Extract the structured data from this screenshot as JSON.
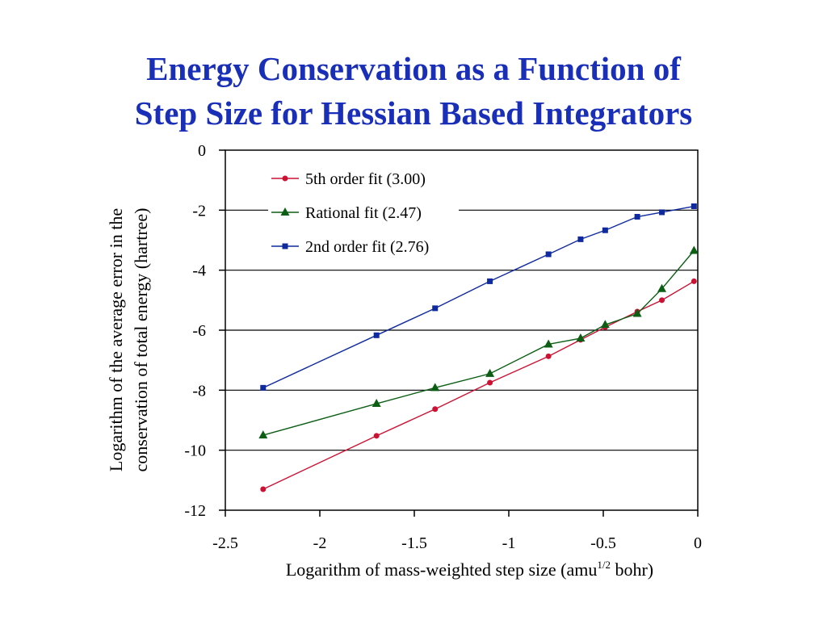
{
  "chart_data": {
    "type": "line",
    "title_line1": "Energy Conservation as a Function of",
    "title_line2": "Step Size for Hessian Based Integrators",
    "xlabel_main": "Logarithm of mass-weighted step size (amu",
    "xlabel_sup": "1/2",
    "xlabel_tail": " bohr)",
    "ylabel_line1": "Logarithm of the average error in the",
    "ylabel_line2": "conservation of total energy (hartree)",
    "xlim": [
      -2.5,
      0
    ],
    "ylim": [
      -12,
      0
    ],
    "xticks": [
      "-2.5",
      "-2",
      "-1.5",
      "-1",
      "-0.5",
      "0"
    ],
    "yticks": [
      "0",
      "-2",
      "-4",
      "-6",
      "-8",
      "-10",
      "-12"
    ],
    "grid": "horizontal",
    "legend_position": "top-left",
    "series": [
      {
        "name": "5th order fit (3.00)",
        "color": "#cc1133",
        "marker": "circle",
        "x": [
          -2.3,
          -1.7,
          -1.39,
          -1.1,
          -0.79,
          -0.62,
          -0.49,
          -0.32,
          -0.19,
          -0.02
        ],
        "y": [
          -11.3,
          -9.52,
          -8.63,
          -7.75,
          -6.87,
          -6.32,
          -5.9,
          -5.38,
          -5.0,
          -4.37
        ]
      },
      {
        "name": "Rational fit (2.47)",
        "color": "#0b5e14",
        "marker": "triangle",
        "x": [
          -2.3,
          -1.7,
          -1.39,
          -1.1,
          -0.79,
          -0.62,
          -0.49,
          -0.32,
          -0.19,
          -0.02
        ],
        "y": [
          -9.5,
          -8.45,
          -7.92,
          -7.45,
          -6.47,
          -6.27,
          -5.82,
          -5.45,
          -4.62,
          -3.35
        ]
      },
      {
        "name": "2nd order fit (2.76)",
        "color": "#0f2a9e",
        "marker": "square",
        "x": [
          -2.3,
          -1.7,
          -1.39,
          -1.1,
          -0.79,
          -0.62,
          -0.49,
          -0.32,
          -0.19,
          -0.02
        ],
        "y": [
          -7.92,
          -6.17,
          -5.27,
          -4.37,
          -3.47,
          -2.97,
          -2.67,
          -2.22,
          -2.07,
          -1.87
        ]
      }
    ]
  }
}
